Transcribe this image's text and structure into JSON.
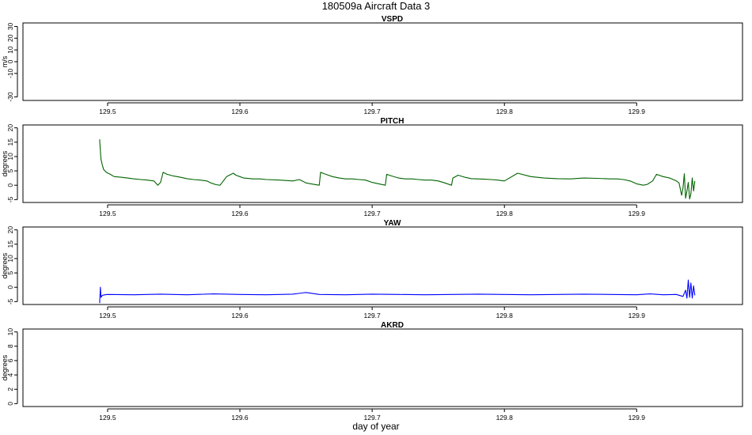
{
  "title": "180509a   Aircraft Data 3",
  "xlabel": "day of year",
  "chart_data": [
    {
      "type": "line",
      "title": "VSPD",
      "ylabel": "m/s",
      "xlim": [
        129.436,
        129.98
      ],
      "ylim": [
        -33,
        33
      ],
      "xticks": [
        129.5,
        129.6,
        129.7,
        129.8,
        129.9
      ],
      "yticks": [
        -30,
        -10,
        0,
        10,
        20,
        30
      ],
      "ytick_labels": [
        "-30",
        "-10",
        "0",
        "10",
        "20",
        "30"
      ],
      "series": []
    },
    {
      "type": "line",
      "title": "PITCH",
      "ylabel": "degrees",
      "xlim": [
        129.436,
        129.98
      ],
      "ylim": [
        -6,
        21
      ],
      "xticks": [
        129.5,
        129.6,
        129.7,
        129.8,
        129.9
      ],
      "yticks": [
        -5,
        0,
        5,
        10,
        15,
        20
      ],
      "ytick_labels": [
        "-5",
        "0",
        "5",
        "10",
        "15",
        "20"
      ],
      "color": "#006400",
      "series": [
        {
          "x": [
            129.494,
            129.4945,
            129.495,
            129.496,
            129.497,
            129.499,
            129.502,
            129.505,
            129.51,
            129.515,
            129.52,
            129.525,
            129.53,
            129.535,
            129.538,
            129.54,
            129.542,
            129.545,
            129.55,
            129.555,
            129.56,
            129.565,
            129.57,
            129.575,
            129.578,
            129.582,
            129.585,
            129.59,
            129.595,
            129.597,
            129.6,
            129.603,
            129.61,
            129.615,
            129.62,
            129.63,
            129.64,
            129.645,
            129.65,
            129.655,
            129.66,
            129.661,
            129.665,
            129.67,
            129.675,
            129.68,
            129.685,
            129.69,
            129.695,
            129.7,
            129.705,
            129.71,
            129.711,
            129.715,
            129.72,
            129.725,
            129.73,
            129.735,
            129.74,
            129.745,
            129.75,
            129.755,
            129.76,
            129.761,
            129.765,
            129.77,
            129.775,
            129.78,
            129.785,
            129.79,
            129.795,
            129.8,
            129.81,
            129.82,
            129.83,
            129.84,
            129.85,
            129.86,
            129.87,
            129.88,
            129.885,
            129.89,
            129.895,
            129.9,
            129.905,
            129.908,
            129.912,
            129.915,
            129.92,
            129.925,
            129.93,
            129.932,
            129.934,
            129.935,
            129.936,
            129.937,
            129.938,
            129.939,
            129.94,
            129.941,
            129.942,
            129.943,
            129.944
          ],
          "y": [
            16,
            12,
            9,
            7,
            5.5,
            4.5,
            3.8,
            3,
            2.8,
            2.5,
            2.2,
            2,
            1.8,
            1.5,
            0,
            1,
            4.5,
            3.8,
            3.2,
            2.8,
            2.3,
            2,
            1.8,
            1.5,
            0.8,
            0.2,
            0,
            3,
            4.2,
            3.5,
            3,
            2.5,
            2.2,
            2.2,
            2,
            1.8,
            1.5,
            2,
            0.8,
            0.4,
            0,
            4.5,
            3.8,
            3,
            2.5,
            2.2,
            2.2,
            2,
            1.8,
            1,
            0.5,
            0,
            3.8,
            3.2,
            2.5,
            2.2,
            2.2,
            2,
            1.8,
            1.8,
            1.5,
            0.8,
            0,
            2.5,
            3.5,
            2.8,
            2.3,
            2.2,
            2.1,
            2,
            1.8,
            1.5,
            4.2,
            3,
            2.5,
            2.3,
            2.2,
            2.5,
            2.4,
            2.2,
            2.2,
            2,
            1.5,
            0.5,
            0,
            0.3,
            1.5,
            3.8,
            3,
            2.5,
            1.5,
            0.8,
            -3.5,
            -1,
            4,
            -4.5,
            -2,
            1,
            -4.8,
            -3,
            2.5,
            -2,
            1.5
          ]
        }
      ]
    },
    {
      "type": "line",
      "title": "YAW",
      "ylabel": "degrees",
      "xlim": [
        129.436,
        129.98
      ],
      "ylim": [
        -6,
        21
      ],
      "xticks": [
        129.5,
        129.6,
        129.7,
        129.8,
        129.9
      ],
      "yticks": [
        -5,
        0,
        5,
        10,
        15,
        20
      ],
      "ytick_labels": [
        "-5",
        "0",
        "5",
        "10",
        "15",
        "20"
      ],
      "color": "#0000ff",
      "series": [
        {
          "x": [
            129.494,
            129.4945,
            129.495,
            129.496,
            129.498,
            129.5,
            129.52,
            129.54,
            129.55,
            129.56,
            129.58,
            129.6,
            129.62,
            129.64,
            129.65,
            129.66,
            129.68,
            129.7,
            129.72,
            129.74,
            129.76,
            129.78,
            129.8,
            129.82,
            129.84,
            129.86,
            129.88,
            129.9,
            129.91,
            129.92,
            129.93,
            129.935,
            129.937,
            129.938,
            129.939,
            129.94,
            129.941,
            129.942,
            129.943,
            129.944
          ],
          "y": [
            -5.5,
            0,
            -3.5,
            -2.8,
            -2.6,
            -2.5,
            -2.6,
            -2.4,
            -2.5,
            -2.6,
            -2.3,
            -2.5,
            -2.6,
            -2.4,
            -1.8,
            -2.5,
            -2.6,
            -2.4,
            -2.5,
            -2.6,
            -2.5,
            -2.4,
            -2.5,
            -2.6,
            -2.5,
            -2.4,
            -2.5,
            -2.6,
            -2.3,
            -2.6,
            -2.5,
            -3.2,
            -1,
            -3.8,
            2.5,
            -3.5,
            1.5,
            -3.8,
            0.5,
            -2.8
          ]
        }
      ]
    },
    {
      "type": "line",
      "title": "AKRD",
      "ylabel": "degrees",
      "xlim": [
        129.436,
        129.98
      ],
      "ylim": [
        -0.4,
        10.4
      ],
      "xticks": [
        129.5,
        129.6,
        129.7,
        129.8,
        129.9
      ],
      "yticks": [
        0,
        2,
        4,
        6,
        8,
        10
      ],
      "ytick_labels": [
        "0",
        "2",
        "4",
        "6",
        "8",
        "10"
      ],
      "series": []
    }
  ]
}
